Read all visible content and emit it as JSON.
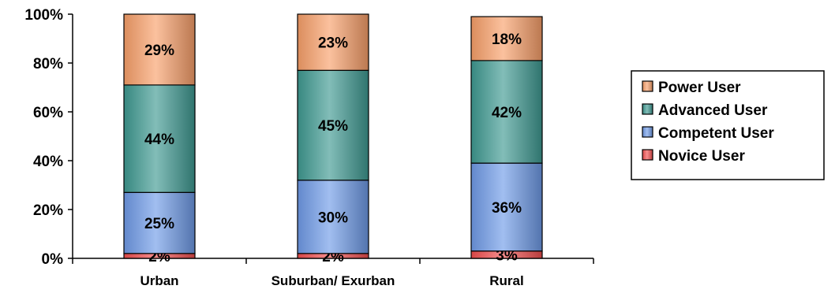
{
  "chart_data": {
    "type": "bar",
    "stacked": true,
    "categories": [
      "Urban",
      "Suburban/ Exurban",
      "Rural"
    ],
    "series": [
      {
        "name": "Novice User",
        "values": [
          2,
          2,
          3
        ],
        "labels": [
          "2%",
          "2%",
          "3%"
        ],
        "color": "#f25050"
      },
      {
        "name": "Competent User",
        "values": [
          25,
          30,
          36
        ],
        "labels": [
          "25%",
          "30%",
          "36%"
        ],
        "color": "#6f9be8"
      },
      {
        "name": "Advanced User",
        "values": [
          44,
          45,
          42
        ],
        "labels": [
          "44%",
          "45%",
          "42%"
        ],
        "color": "#3e9a92"
      },
      {
        "name": "Power User",
        "values": [
          29,
          23,
          18
        ],
        "labels": [
          "29%",
          "23%",
          "18%"
        ],
        "color": "#f9a06a"
      }
    ],
    "legend_order": [
      "Power User",
      "Advanced User",
      "Competent User",
      "Novice User"
    ],
    "ylim": [
      0,
      100
    ],
    "yticks": [
      0,
      20,
      40,
      60,
      80,
      100
    ],
    "ytick_labels": [
      "0%",
      "20%",
      "40%",
      "60%",
      "80%",
      "100%"
    ],
    "grid": false,
    "legend_position": "right",
    "title": "",
    "xlabel": "",
    "ylabel": ""
  }
}
